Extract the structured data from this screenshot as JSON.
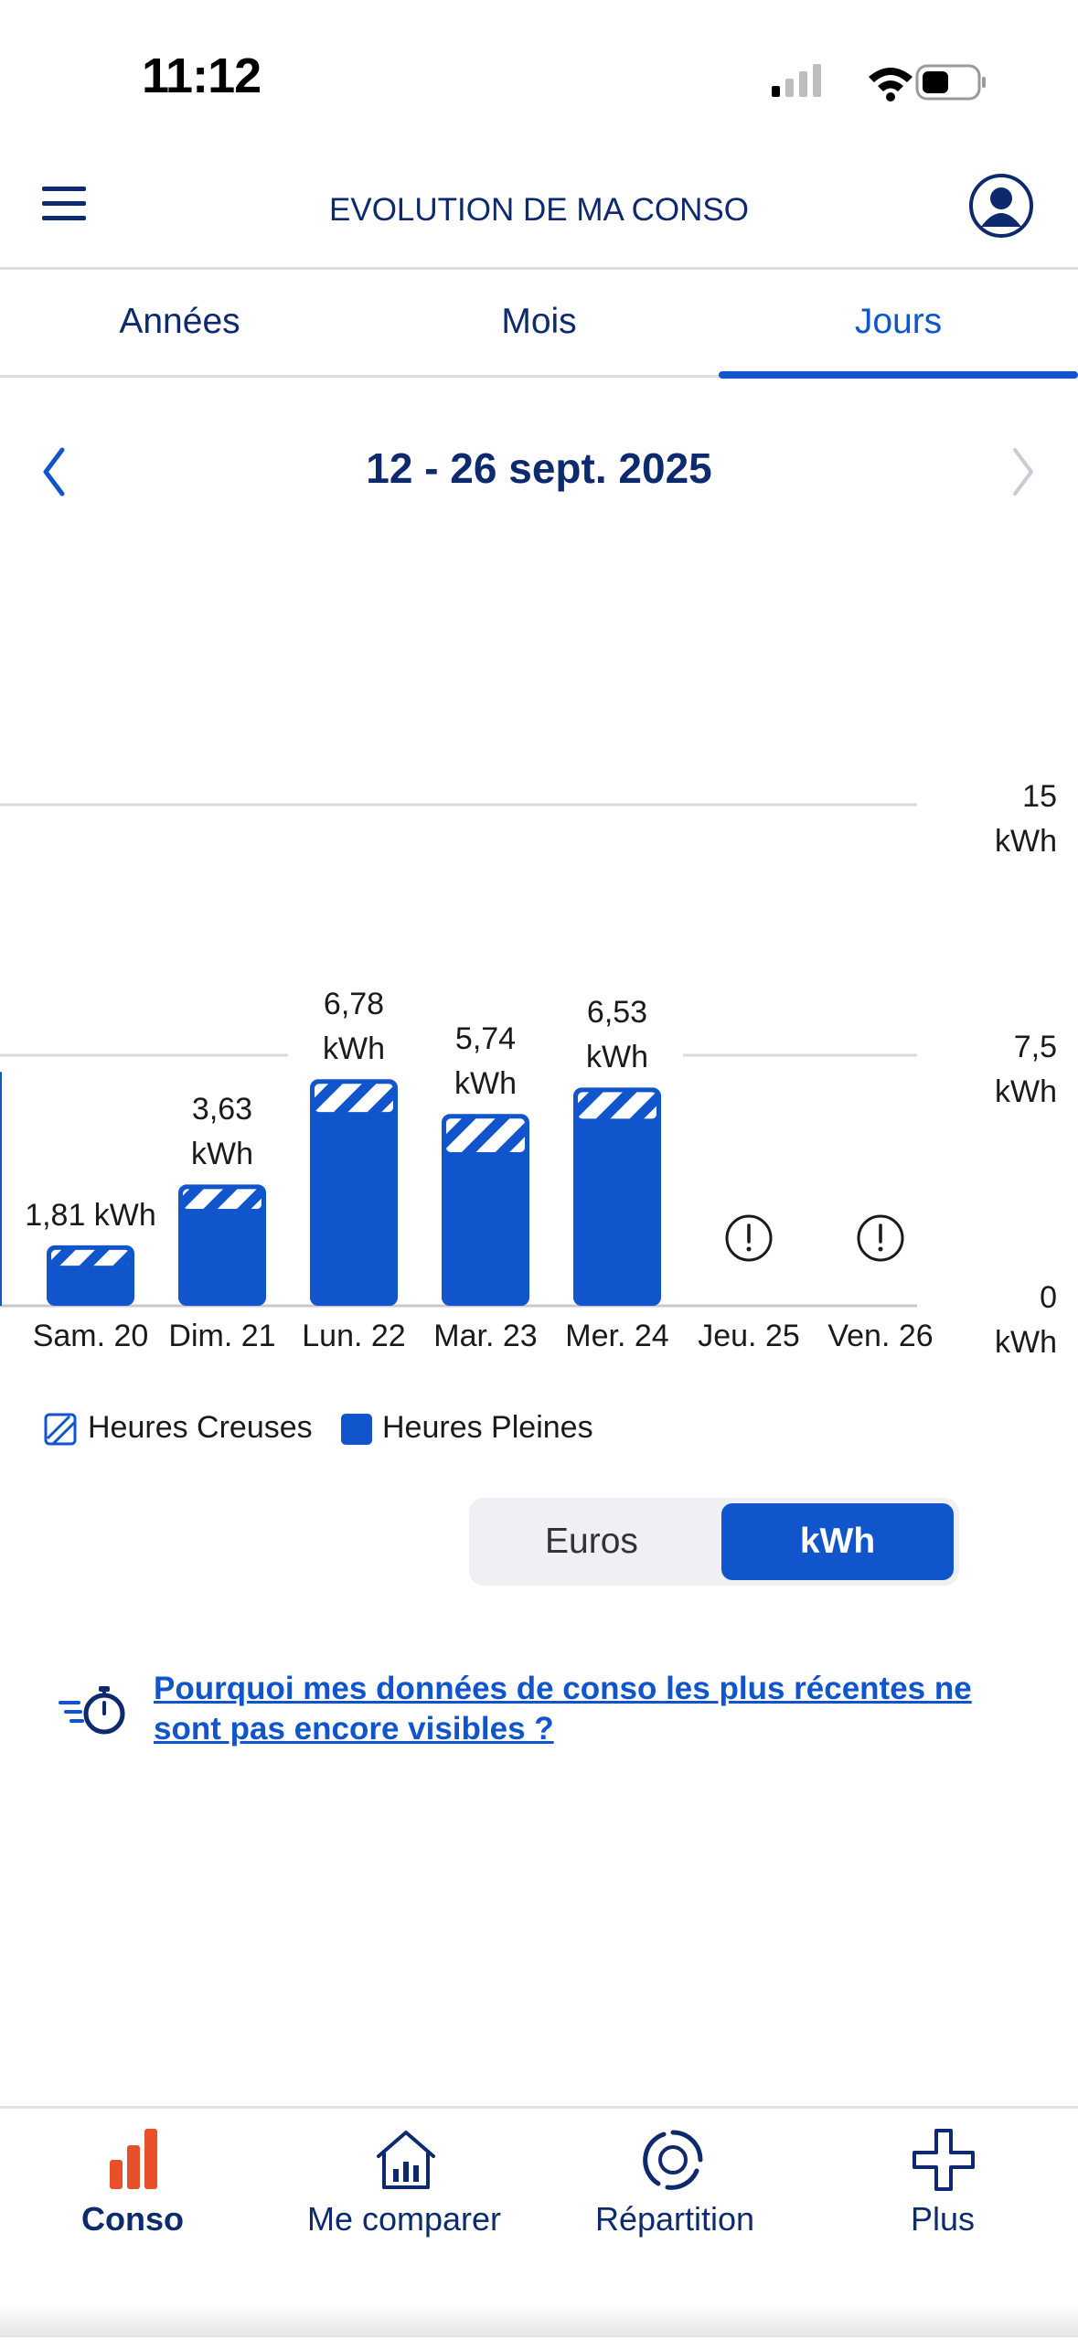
{
  "status_bar": {
    "time": "11:12"
  },
  "header": {
    "title": "EVOLUTION DE MA CONSO"
  },
  "tabs": [
    {
      "label": "Années",
      "active": false
    },
    {
      "label": "Mois",
      "active": false
    },
    {
      "label": "Jours",
      "active": true
    }
  ],
  "period": {
    "label": "12 - 26 sept. 2025"
  },
  "chart_data": {
    "type": "bar",
    "categories": [
      "Sam. 20",
      "Dim. 21",
      "Lun. 22",
      "Mar. 23",
      "Mer. 24",
      "Jeu. 25",
      "Ven. 26"
    ],
    "partial_category_left": "0",
    "series": [
      {
        "name": "Heures Pleines",
        "values": [
          1.2,
          2.9,
          5.8,
          4.6,
          5.6,
          null,
          null
        ],
        "color": "#1155cc"
      },
      {
        "name": "Heures Creuses",
        "values": [
          0.61,
          0.73,
          0.98,
          1.14,
          0.93,
          null,
          null
        ],
        "color": "#1155cc",
        "pattern": "hatched"
      }
    ],
    "totals": [
      1.81,
      3.63,
      6.78,
      5.74,
      6.53,
      null,
      null
    ],
    "total_labels": [
      "1,81 kWh",
      "3,63\nkWh",
      "6,78\nkWh",
      "5,74\nkWh",
      "6,53\nkWh",
      "",
      ""
    ],
    "missing_data_indicator": [
      false,
      false,
      false,
      false,
      false,
      true,
      true
    ],
    "y_ticks": [
      {
        "value": 0,
        "label": "0\nkWh"
      },
      {
        "value": 7.5,
        "label": "7,5\nkWh"
      },
      {
        "value": 15,
        "label": "15\nkWh"
      }
    ],
    "ylim": [
      0,
      15
    ],
    "grid": true,
    "legend_position": "bottom-left"
  },
  "legend": [
    {
      "label": "Heures Creuses",
      "style": "hatched"
    },
    {
      "label": "Heures Pleines",
      "style": "solid"
    }
  ],
  "unit_toggle": {
    "options": [
      "Euros",
      "kWh"
    ],
    "selected": "kWh"
  },
  "info": {
    "link_text": "Pourquoi mes données de conso les plus récentes ne sont pas encore visibles ?"
  },
  "bottom_nav": [
    {
      "label": "Conso",
      "icon": "bar-chart-icon",
      "active": true
    },
    {
      "label": "Me comparer",
      "icon": "house-chart-icon",
      "active": false
    },
    {
      "label": "Répartition",
      "icon": "donut-chart-icon",
      "active": false
    },
    {
      "label": "Plus",
      "icon": "plus-icon",
      "active": false
    }
  ],
  "colors": {
    "accent": "#1155cc",
    "navy": "#0d2a6e",
    "active_nav": "#e8502a"
  }
}
